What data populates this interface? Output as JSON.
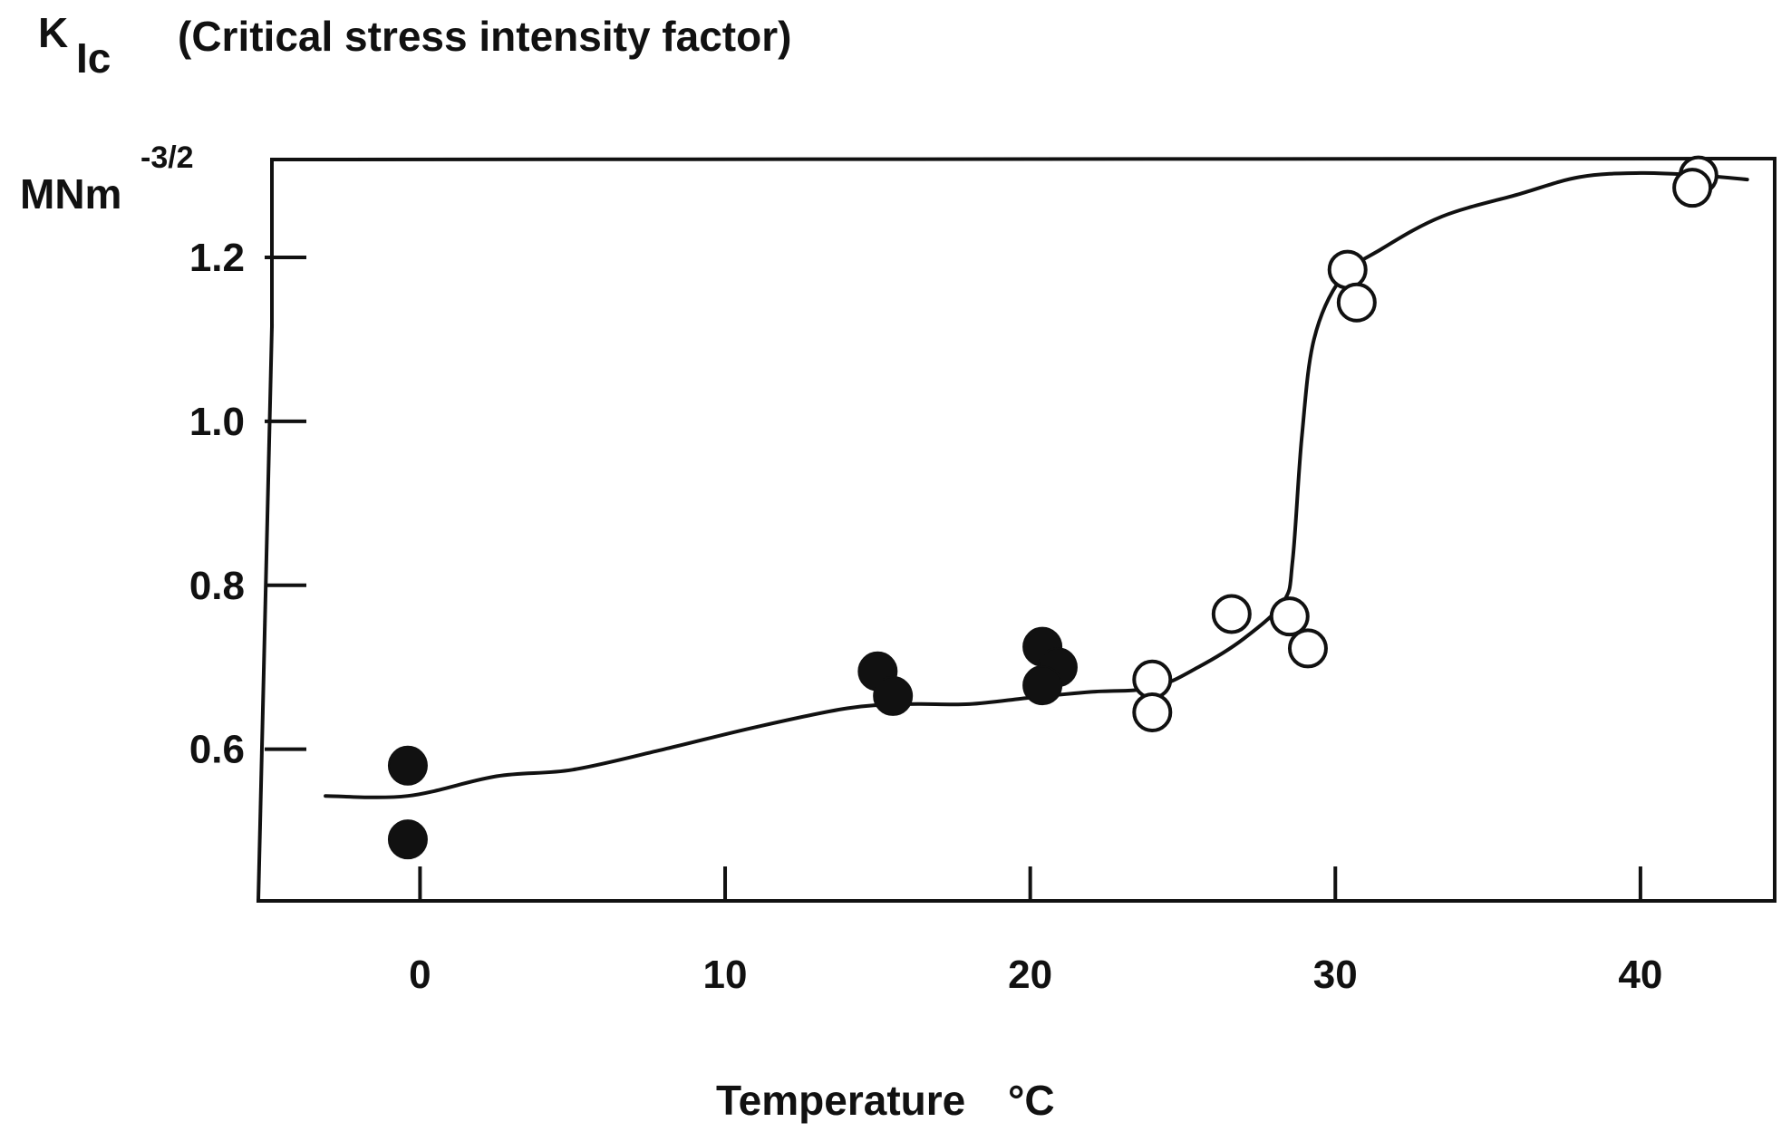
{
  "chart_data": {
    "type": "scatter",
    "title": {
      "symbol": "K",
      "subscript": "Ic",
      "text": "(Critical stress intensity factor)"
    },
    "ylabel": {
      "unit": "MNm",
      "exponent": "-3/2"
    },
    "xlabel": {
      "text": "Temperature",
      "unit": "°C"
    },
    "xlim": [
      -5.3,
      44.4
    ],
    "ylim": [
      0.415,
      1.315
    ],
    "xticks": [
      0,
      10,
      20,
      30,
      40
    ],
    "xtick_labels": [
      "0",
      "10",
      "20",
      "30",
      "40"
    ],
    "yticks": [
      0.6,
      0.8,
      1.0,
      1.2
    ],
    "ytick_labels": [
      "0.6",
      "0.8",
      "1.0",
      "1.2"
    ],
    "series": [
      {
        "name": "filled",
        "marker": "filled-circle",
        "points": [
          {
            "x": -0.4,
            "y": 0.58
          },
          {
            "x": -0.4,
            "y": 0.49
          },
          {
            "x": 15.0,
            "y": 0.695
          },
          {
            "x": 15.5,
            "y": 0.665
          },
          {
            "x": 20.4,
            "y": 0.725
          },
          {
            "x": 20.9,
            "y": 0.7
          },
          {
            "x": 20.4,
            "y": 0.678
          }
        ]
      },
      {
        "name": "open",
        "marker": "open-circle",
        "points": [
          {
            "x": 24.0,
            "y": 0.685
          },
          {
            "x": 24.0,
            "y": 0.645
          },
          {
            "x": 26.6,
            "y": 0.765
          },
          {
            "x": 28.5,
            "y": 0.762
          },
          {
            "x": 29.1,
            "y": 0.723
          },
          {
            "x": 30.4,
            "y": 1.185
          },
          {
            "x": 30.7,
            "y": 1.145
          },
          {
            "x": 41.9,
            "y": 1.3
          },
          {
            "x": 41.7,
            "y": 1.285
          }
        ]
      }
    ],
    "curve": {
      "name": "fitted trend",
      "points": [
        {
          "x": -3.1,
          "y": 0.543
        },
        {
          "x": -0.4,
          "y": 0.543
        },
        {
          "x": 2.5,
          "y": 0.567
        },
        {
          "x": 5.0,
          "y": 0.575
        },
        {
          "x": 8.0,
          "y": 0.6
        },
        {
          "x": 11.0,
          "y": 0.627
        },
        {
          "x": 14.0,
          "y": 0.65
        },
        {
          "x": 16.0,
          "y": 0.655
        },
        {
          "x": 18.0,
          "y": 0.655
        },
        {
          "x": 20.0,
          "y": 0.663
        },
        {
          "x": 22.0,
          "y": 0.67
        },
        {
          "x": 24.0,
          "y": 0.675
        },
        {
          "x": 25.5,
          "y": 0.7
        },
        {
          "x": 27.0,
          "y": 0.735
        },
        {
          "x": 28.3,
          "y": 0.78
        },
        {
          "x": 28.6,
          "y": 0.83
        },
        {
          "x": 28.9,
          "y": 0.98
        },
        {
          "x": 29.3,
          "y": 1.1
        },
        {
          "x": 30.2,
          "y": 1.175
        },
        {
          "x": 31.5,
          "y": 1.21
        },
        {
          "x": 33.5,
          "y": 1.25
        },
        {
          "x": 36.0,
          "y": 1.277
        },
        {
          "x": 38.0,
          "y": 1.298
        },
        {
          "x": 40.0,
          "y": 1.303
        },
        {
          "x": 42.0,
          "y": 1.3
        },
        {
          "x": 43.5,
          "y": 1.295
        }
      ]
    },
    "grid": false,
    "legend": "none"
  }
}
